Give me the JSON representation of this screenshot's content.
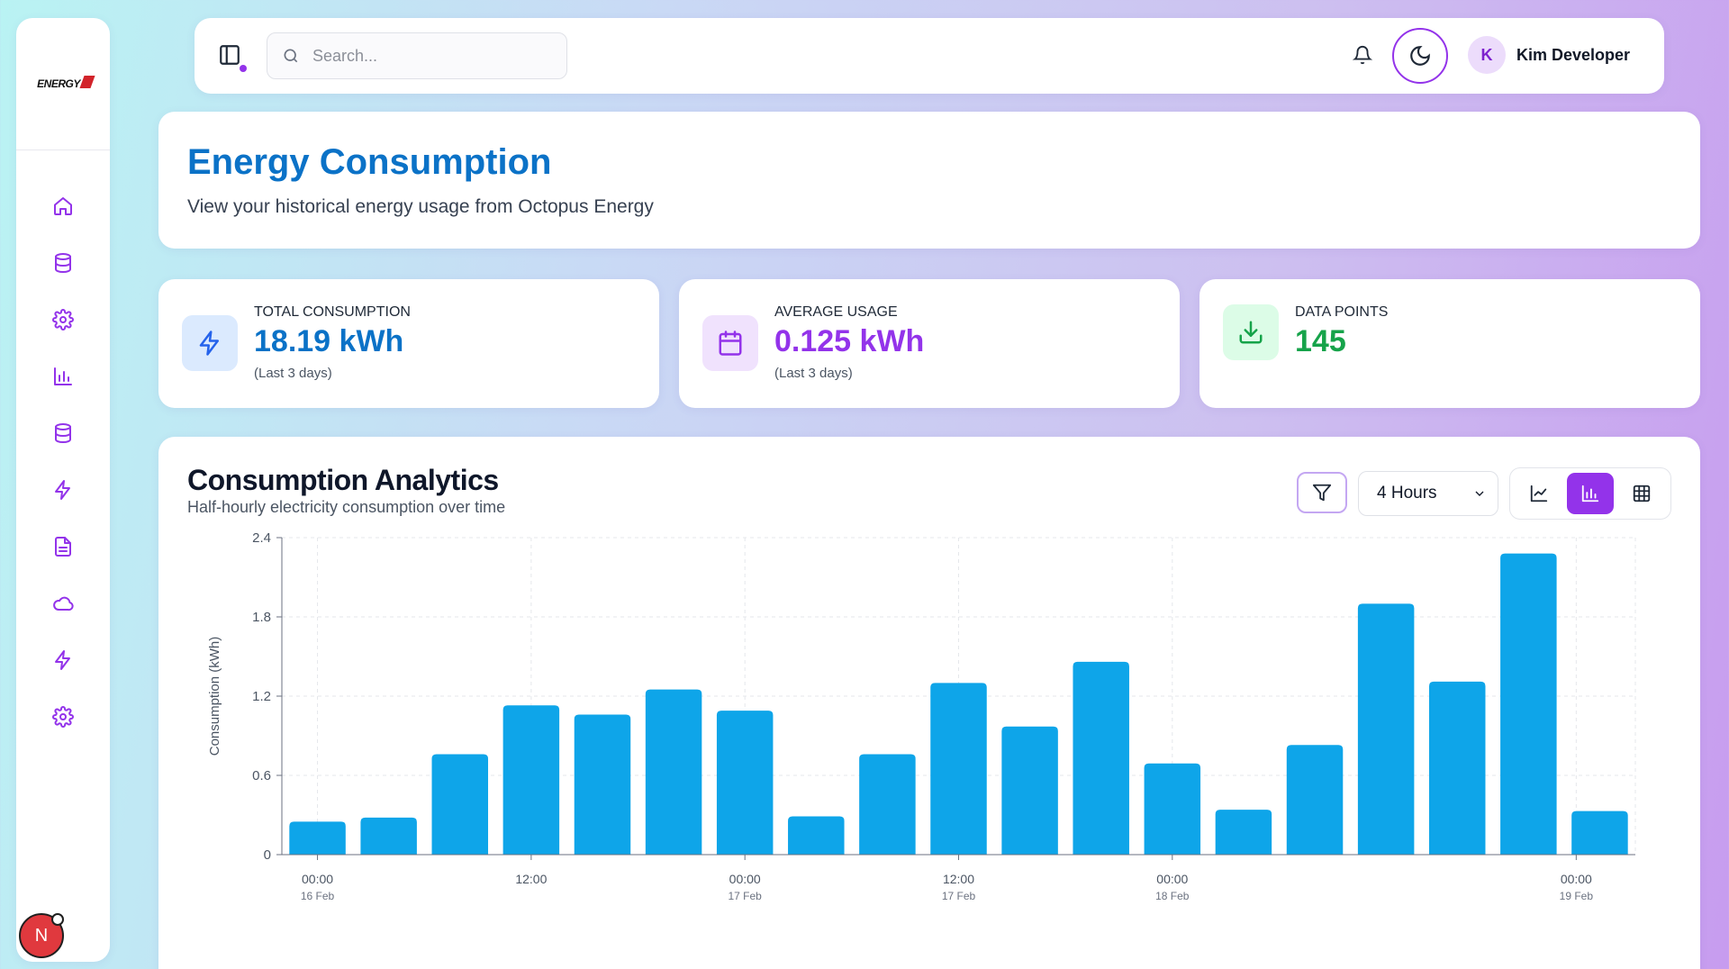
{
  "app": {
    "logo_text": "ENERGY"
  },
  "topbar": {
    "search_placeholder": "Search...",
    "user_initial": "K",
    "user_name": "Kim Developer"
  },
  "header": {
    "title": "Energy Consumption",
    "subtitle": "View your historical energy usage from Octopus Energy"
  },
  "stats": [
    {
      "label": "TOTAL CONSUMPTION",
      "value": "18.19 kWh",
      "note": "(Last 3 days)",
      "color": "#0b72c7",
      "icon": "lightning-icon"
    },
    {
      "label": "AVERAGE USAGE",
      "value": "0.125 kWh",
      "note": "(Last 3 days)",
      "color": "#9333ea",
      "icon": "calendar-icon"
    },
    {
      "label": "DATA POINTS",
      "value": "145",
      "note": "",
      "color": "#16a34a",
      "icon": "download-icon"
    }
  ],
  "analytics": {
    "title": "Consumption Analytics",
    "subtitle": "Half-hourly electricity consumption over time",
    "range_selected": "4 Hours"
  },
  "avatar_badge": "N",
  "chart_data": {
    "type": "bar",
    "ylabel": "Consumption (kWh)",
    "xlabel": "",
    "ylim": [
      0,
      2.4
    ],
    "yticks": [
      "0",
      "0.6",
      "1.2",
      "1.8",
      "2.4"
    ],
    "grid": true,
    "bar_color": "#0ea5e9",
    "values": [
      0.25,
      0.28,
      0.76,
      1.13,
      1.06,
      1.25,
      1.09,
      0.29,
      0.76,
      1.3,
      0.97,
      1.46,
      0.69,
      0.34,
      0.83,
      1.9,
      1.31,
      2.28,
      0.33
    ],
    "xticks": [
      {
        "time": "00:00",
        "date": "16 Feb",
        "at": 0
      },
      {
        "time": "12:00",
        "date": "",
        "at": 3
      },
      {
        "time": "00:00",
        "date": "17 Feb",
        "at": 6
      },
      {
        "time": "12:00",
        "date": "17 Feb",
        "at": 9
      },
      {
        "time": "00:00",
        "date": "18 Feb",
        "at": 12
      },
      {
        "time": "00:00",
        "date": "19 Feb",
        "at": 17.67
      }
    ]
  }
}
